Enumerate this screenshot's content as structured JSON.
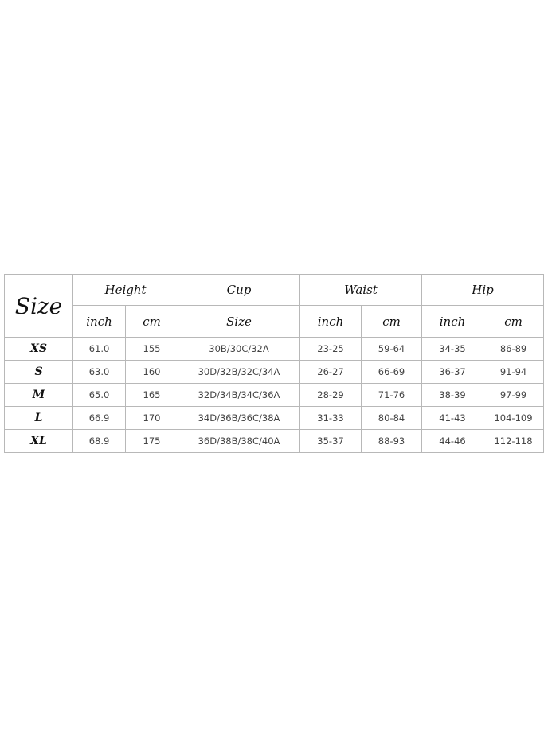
{
  "headers": {
    "size": "Size",
    "height": "Height",
    "cup": "Cup",
    "waist": "Waist",
    "hip": "Hip",
    "inch": "inch",
    "cm": "cm",
    "cup_size": "Size"
  },
  "rows": [
    {
      "size": "XS",
      "height_inch": "61.0",
      "height_cm": "155",
      "cup": "30B/30C/32A",
      "waist_inch": "23-25",
      "waist_cm": "59-64",
      "hip_inch": "34-35",
      "hip_cm": "86-89"
    },
    {
      "size": "S",
      "height_inch": "63.0",
      "height_cm": "160",
      "cup": "30D/32B/32C/34A",
      "waist_inch": "26-27",
      "waist_cm": "66-69",
      "hip_inch": "36-37",
      "hip_cm": "91-94"
    },
    {
      "size": "M",
      "height_inch": "65.0",
      "height_cm": "165",
      "cup": "32D/34B/34C/36A",
      "waist_inch": "28-29",
      "waist_cm": "71-76",
      "hip_inch": "38-39",
      "hip_cm": "97-99"
    },
    {
      "size": "L",
      "height_inch": "66.9",
      "height_cm": "170",
      "cup": "34D/36B/36C/38A",
      "waist_inch": "31-33",
      "waist_cm": "80-84",
      "hip_inch": "41-43",
      "hip_cm": "104-109"
    },
    {
      "size": "XL",
      "height_inch": "68.9",
      "height_cm": "175",
      "cup": "36D/38B/38C/40A",
      "waist_inch": "35-37",
      "waist_cm": "88-93",
      "hip_inch": "44-46",
      "hip_cm": "112-118"
    }
  ]
}
